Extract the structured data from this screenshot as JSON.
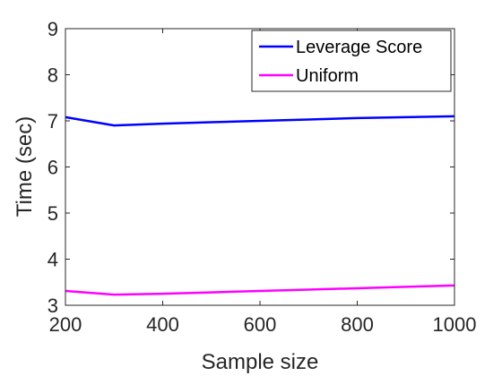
{
  "chart_data": {
    "type": "line",
    "title": "",
    "xlabel": "Sample size",
    "ylabel": "Time (sec)",
    "xlim": [
      200,
      1000
    ],
    "ylim": [
      3,
      9
    ],
    "xticks": [
      200,
      400,
      600,
      800,
      1000
    ],
    "yticks": [
      3,
      4,
      5,
      6,
      7,
      8,
      9
    ],
    "grid": false,
    "legend_position": "top-right",
    "x": [
      200,
      300,
      400,
      500,
      600,
      700,
      800,
      900,
      1000
    ],
    "series": [
      {
        "name": "Leverage Score",
        "color": "#0000ff",
        "values": [
          7.08,
          6.9,
          6.94,
          6.97,
          7.0,
          7.03,
          7.06,
          7.08,
          7.1
        ]
      },
      {
        "name": "Uniform",
        "color": "#ff00ff",
        "values": [
          3.31,
          3.23,
          3.25,
          3.28,
          3.31,
          3.34,
          3.37,
          3.4,
          3.43
        ]
      }
    ]
  }
}
